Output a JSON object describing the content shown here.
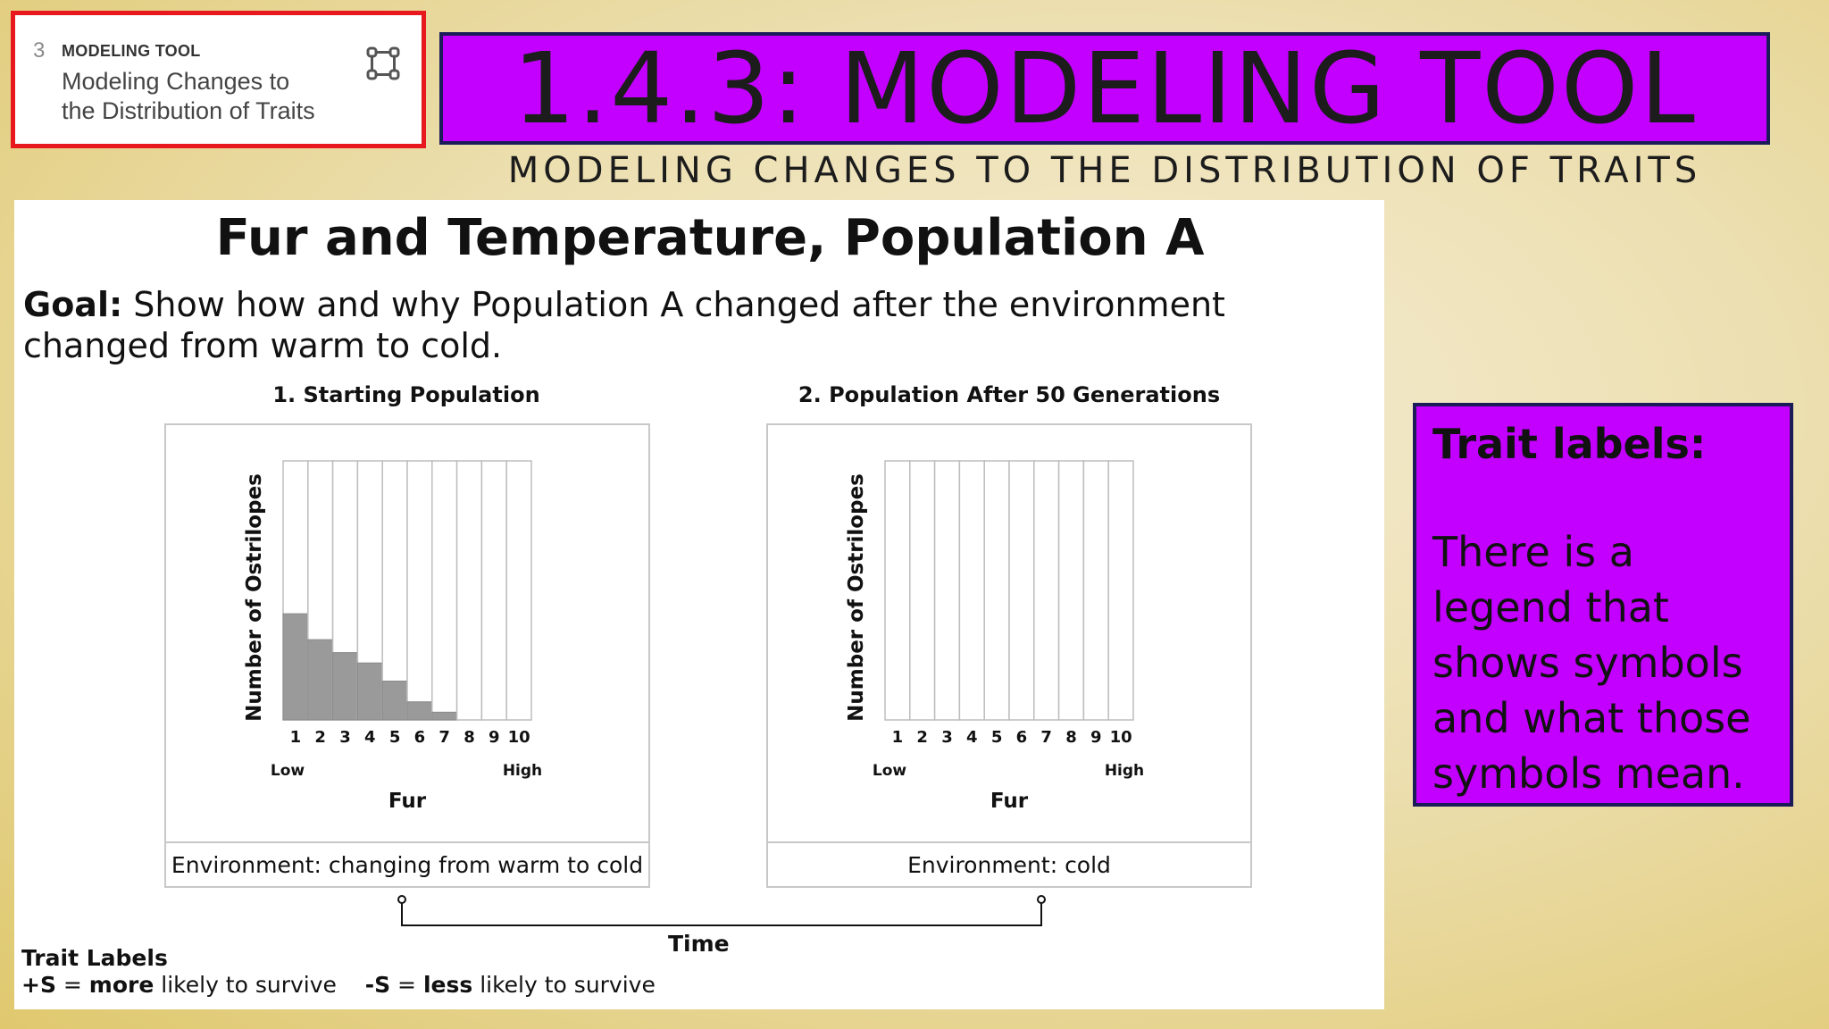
{
  "card": {
    "number": "3",
    "kicker": "MODELING TOOL",
    "title": "Modeling Changes to the Distribution of Traits",
    "icon": "network-nodes-icon"
  },
  "banner": {
    "title": "1.4.3: MODELING TOOL",
    "subtitle": "MODELING CHANGES TO THE DISTRIBUTION OF TRAITS",
    "color": "#c300ff"
  },
  "document": {
    "title": "Fur and Temperature, Population A",
    "goal_label": "Goal:",
    "goal_text": " Show how and why Population A changed after the environment changed from warm to cold.",
    "time_label": "Time",
    "trait_labels_heading": "Trait Labels",
    "trait_plus_symbol": "+S",
    "trait_plus_eq": " = ",
    "trait_plus_bold": "more",
    "trait_plus_rest": " likely to survive",
    "trait_minus_symbol": "-S",
    "trait_minus_eq": " = ",
    "trait_minus_bold": "less",
    "trait_minus_rest": " likely to survive"
  },
  "chart_data": [
    {
      "type": "bar",
      "title": "1. Starting Population",
      "xlabel": "Fur",
      "ylabel": "Number of Ostrilopes",
      "categories": [
        "1",
        "2",
        "3",
        "4",
        "5",
        "6",
        "7",
        "8",
        "9",
        "10"
      ],
      "values": [
        0.41,
        0.31,
        0.26,
        0.22,
        0.15,
        0.07,
        0.03,
        0,
        0,
        0
      ],
      "ylim": [
        0,
        1
      ],
      "low_label": "Low",
      "high_label": "High",
      "environment": "Environment: changing from warm to cold"
    },
    {
      "type": "bar",
      "title": "2. Population After 50 Generations",
      "xlabel": "Fur",
      "ylabel": "Number of Ostrilopes",
      "categories": [
        "1",
        "2",
        "3",
        "4",
        "5",
        "6",
        "7",
        "8",
        "9",
        "10"
      ],
      "values": [
        0,
        0,
        0,
        0,
        0,
        0,
        0,
        0,
        0,
        0
      ],
      "ylim": [
        0,
        1
      ],
      "low_label": "Low",
      "high_label": "High",
      "environment": "Environment: cold"
    }
  ],
  "side_panel": {
    "title": "Trait labels:",
    "body": "There is a legend that shows symbols and what those symbols mean.",
    "color": "#c300ff"
  }
}
